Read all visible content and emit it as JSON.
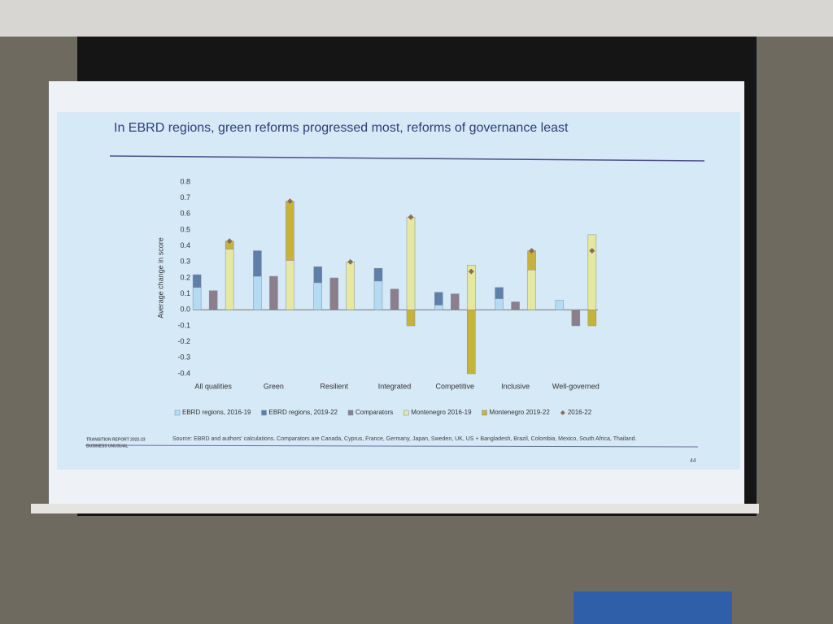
{
  "chart_data": {
    "type": "stacked-bar",
    "title": "In EBRD regions, green reforms progressed most, reforms of governance least",
    "y_label": "Average change in score",
    "categories": [
      "All qualities",
      "Green",
      "Resilient",
      "Integrated",
      "Competitive",
      "Inclusive",
      "Well-governed"
    ],
    "series": [
      {
        "name": "EBRD regions, 2016-19",
        "color": "#b3dcf3",
        "group": 0,
        "values": [
          0.14,
          0.21,
          0.17,
          0.18,
          0.03,
          0.07,
          0.06
        ]
      },
      {
        "name": "EBRD regions, 2019-22",
        "color": "#5d7fa8",
        "group": 0,
        "values": [
          0.08,
          0.16,
          0.1,
          0.08,
          0.08,
          0.07,
          0.0
        ]
      },
      {
        "name": "Comparators",
        "color": "#8c7f8b",
        "group": 1,
        "values": [
          0.12,
          0.21,
          0.2,
          0.13,
          0.1,
          0.05,
          -0.1
        ]
      },
      {
        "name": "Montenegro 2016-19",
        "color": "#e6e8a0",
        "group": 2,
        "values": [
          0.38,
          0.31,
          0.3,
          0.58,
          0.28,
          0.25,
          0.47
        ]
      },
      {
        "name": "Montenegro 2019-22",
        "color": "#c9b23a",
        "group": 2,
        "values": [
          0.05,
          0.37,
          0.0,
          -0.1,
          -0.4,
          0.12,
          -0.1
        ]
      },
      {
        "name": "2016-22",
        "color": "#8a6e55",
        "group": 2,
        "marker": "diamond",
        "values": [
          0.43,
          0.68,
          0.3,
          0.58,
          0.24,
          0.37,
          0.37
        ]
      }
    ],
    "ylim": [
      -0.4,
      0.8
    ],
    "yticks": [
      -0.4,
      -0.3,
      -0.2,
      -0.1,
      {
        "value": 0,
        "label": "0.0"
      },
      0.1,
      0.2,
      0.3,
      0.4,
      0.5,
      0.6,
      0.7,
      0.8
    ]
  },
  "footer": {
    "report": "TRANSITION REPORT 2022-23",
    "subtitle": "BUSINESS UNUSUAL",
    "source": "Source: EBRD and authors' calculations. Comparators are Canada, Cyprus, France, Germany, Japan, Sweden, UK, US + Bangladesh, Brazil, Colombia, Mexico, South Africa, Thailand.",
    "page": "44"
  }
}
